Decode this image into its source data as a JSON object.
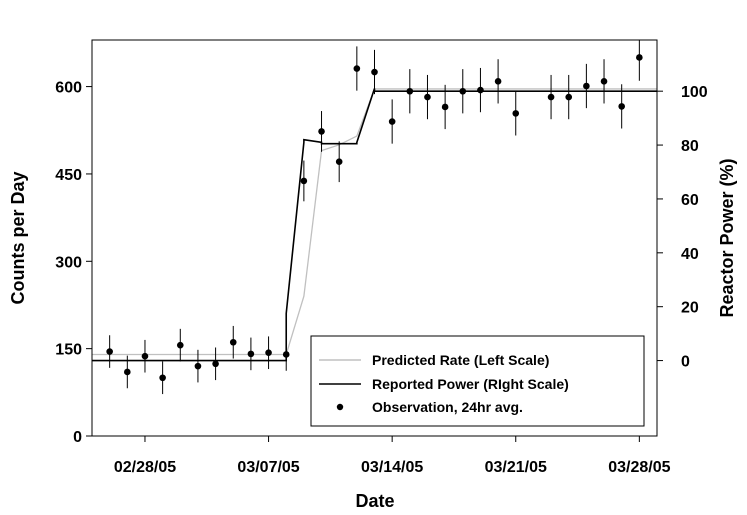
{
  "chart_data": {
    "type": "line",
    "xlabel": "Date",
    "ylabel_left": "Counts per Day",
    "ylabel_right": "Reactor Power (%)",
    "x_ticks": [
      "02/28/05",
      "03/07/05",
      "03/14/05",
      "03/21/05",
      "03/28/05"
    ],
    "x_range": [
      "02/25/05",
      "03/29/05"
    ],
    "y_left_ticks": [
      0,
      150,
      300,
      450,
      600
    ],
    "y_left_range": [
      0,
      680
    ],
    "y_right_ticks": [
      0,
      20,
      40,
      60,
      80,
      100
    ],
    "y_right_range": [
      -28,
      119
    ],
    "grid": false,
    "legend_position": "bottom-right",
    "legend": [
      {
        "label": "Predicted Rate (Left Scale)",
        "kind": "line",
        "color": "#c0c0c0"
      },
      {
        "label": "Reported Power (RIght Scale)",
        "kind": "line",
        "color": "#000000"
      },
      {
        "label": "Observation, 24hr avg.",
        "kind": "point",
        "color": "#000000"
      }
    ],
    "series": [
      {
        "name": "Predicted Rate (Left Scale)",
        "axis": "left",
        "color": "#c0c0c0",
        "points": [
          [
            "02/25/05",
            140
          ],
          [
            "03/08/05",
            140
          ],
          [
            "03/09/05",
            240
          ],
          [
            "03/10/05",
            490
          ],
          [
            "03/11/05",
            500
          ],
          [
            "03/12/05",
            515
          ],
          [
            "03/13/05",
            596
          ],
          [
            "03/29/05",
            596
          ]
        ]
      },
      {
        "name": "Reported Power (RIght Scale)",
        "axis": "right",
        "color": "#000000",
        "points": [
          [
            "02/25/05",
            0
          ],
          [
            "03/08/05",
            0
          ],
          [
            "03/08/05",
            0.5
          ],
          [
            "03/08/05",
            17
          ],
          [
            "03/08/05",
            17.5
          ],
          [
            "03/09/05",
            81
          ],
          [
            "03/09/05",
            82
          ],
          [
            "03/10/05",
            81
          ],
          [
            "03/10/05",
            80.5
          ],
          [
            "03/11/05",
            80.5
          ],
          [
            "03/12/05",
            80.5
          ],
          [
            "03/12/05",
            81
          ],
          [
            "03/13/05",
            101
          ],
          [
            "03/13/05",
            100
          ],
          [
            "03/29/05",
            100
          ]
        ]
      },
      {
        "name": "Observation, 24hr avg.",
        "axis": "left",
        "kind": "errorbar",
        "points": [
          {
            "x": "02/26/05",
            "y": 145,
            "err": 28
          },
          {
            "x": "02/27/05",
            "y": 110,
            "err": 28
          },
          {
            "x": "02/28/05",
            "y": 137,
            "err": 28
          },
          {
            "x": "03/01/05",
            "y": 100,
            "err": 28
          },
          {
            "x": "03/02/05",
            "y": 156,
            "err": 28
          },
          {
            "x": "03/03/05",
            "y": 120,
            "err": 28
          },
          {
            "x": "03/04/05",
            "y": 124,
            "err": 28
          },
          {
            "x": "03/05/05",
            "y": 161,
            "err": 28
          },
          {
            "x": "03/06/05",
            "y": 141,
            "err": 28
          },
          {
            "x": "03/07/05",
            "y": 143,
            "err": 28
          },
          {
            "x": "03/08/05",
            "y": 140,
            "err": 28
          },
          {
            "x": "03/09/05",
            "y": 438,
            "err": 35
          },
          {
            "x": "03/10/05",
            "y": 523,
            "err": 35
          },
          {
            "x": "03/11/05",
            "y": 471,
            "err": 35
          },
          {
            "x": "03/12/05",
            "y": 631,
            "err": 38
          },
          {
            "x": "03/13/05",
            "y": 625,
            "err": 38
          },
          {
            "x": "03/14/05",
            "y": 540,
            "err": 38
          },
          {
            "x": "03/15/05",
            "y": 592,
            "err": 38
          },
          {
            "x": "03/16/05",
            "y": 582,
            "err": 38
          },
          {
            "x": "03/17/05",
            "y": 565,
            "err": 38
          },
          {
            "x": "03/18/05",
            "y": 592,
            "err": 38
          },
          {
            "x": "03/19/05",
            "y": 594,
            "err": 38
          },
          {
            "x": "03/20/05",
            "y": 609,
            "err": 38
          },
          {
            "x": "03/21/05",
            "y": 554,
            "err": 38
          },
          {
            "x": "03/23/05",
            "y": 582,
            "err": 38
          },
          {
            "x": "03/24/05",
            "y": 582,
            "err": 38
          },
          {
            "x": "03/25/05",
            "y": 601,
            "err": 38
          },
          {
            "x": "03/26/05",
            "y": 609,
            "err": 38
          },
          {
            "x": "03/27/05",
            "y": 566,
            "err": 38
          },
          {
            "x": "03/28/05",
            "y": 650,
            "err": 40
          }
        ]
      }
    ]
  }
}
